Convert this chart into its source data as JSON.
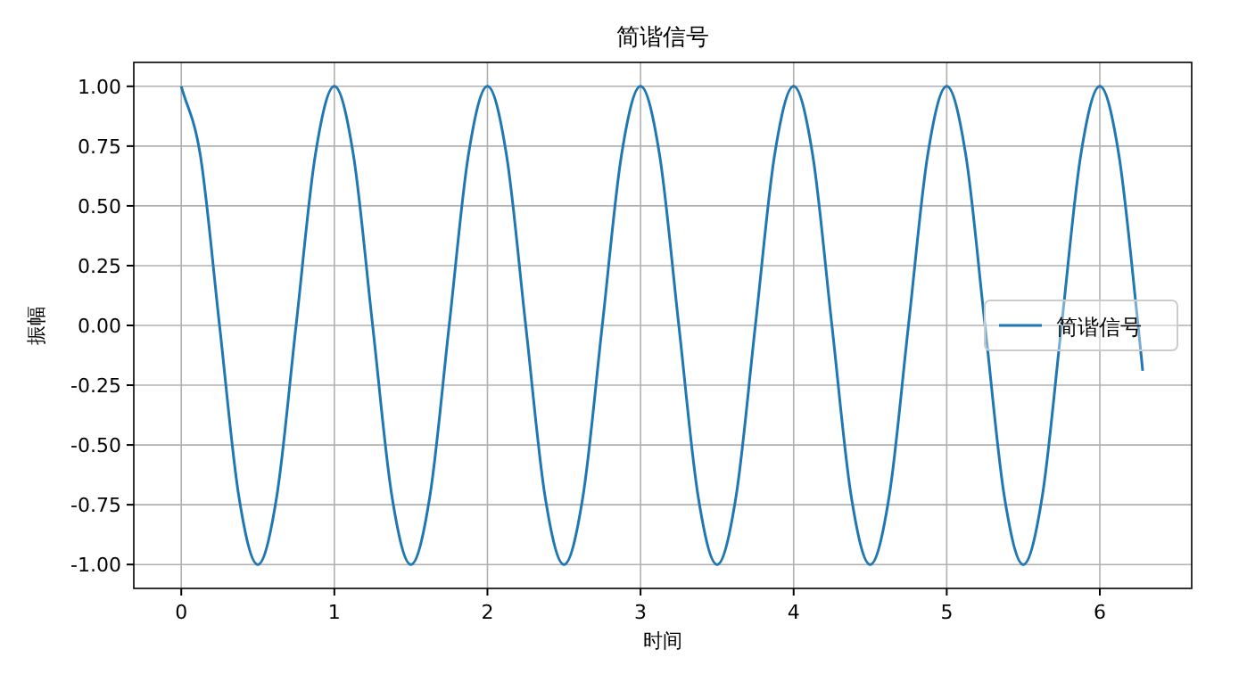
{
  "chart_data": {
    "type": "line",
    "title": "简谐信号",
    "xlabel": "时间",
    "ylabel": "振幅",
    "x": [
      0,
      0.125,
      0.25,
      0.375,
      0.5,
      0.625,
      0.75,
      0.875,
      1,
      1.125,
      1.25,
      1.375,
      1.5,
      1.625,
      1.75,
      1.875,
      2,
      2.125,
      2.25,
      2.375,
      2.5,
      2.625,
      2.75,
      2.875,
      3,
      3.125,
      3.25,
      3.375,
      3.5,
      3.625,
      3.75,
      3.875,
      4,
      4.125,
      4.25,
      4.375,
      4.5,
      4.625,
      4.75,
      4.875,
      5,
      5.125,
      5.25,
      5.375,
      5.5,
      5.625,
      5.75,
      5.875,
      6,
      6.125,
      6.25,
      6.28
    ],
    "series": [
      {
        "name": "简谐信号",
        "color": "#1f77b4",
        "values": [
          1,
          0.71,
          0,
          -0.71,
          -1,
          -0.71,
          0,
          0.71,
          1,
          0.71,
          0,
          -0.71,
          -1,
          -0.71,
          0,
          0.71,
          1,
          0.71,
          0,
          -0.71,
          -1,
          -0.71,
          0,
          0.71,
          1,
          0.71,
          0,
          -0.71,
          -1,
          -0.71,
          0,
          0.71,
          1,
          0.71,
          0,
          -0.71,
          -1,
          -0.71,
          0,
          0.71,
          1,
          0.71,
          0,
          -0.71,
          -1,
          -0.71,
          0,
          0.71,
          1,
          0.71,
          0,
          -0.19
        ]
      }
    ],
    "xlim": [
      -0.31,
      6.6
    ],
    "ylim": [
      -1.1,
      1.1
    ],
    "xticks": [
      0,
      1,
      2,
      3,
      4,
      5,
      6
    ],
    "yticks": [
      {
        "value": -1,
        "label": "-1.00"
      },
      {
        "value": -0.75,
        "label": "-0.75"
      },
      {
        "value": -0.5,
        "label": "-0.50"
      },
      {
        "value": -0.25,
        "label": "-0.25"
      },
      {
        "value": 0,
        "label": "0.00"
      },
      {
        "value": 0.25,
        "label": "0.25"
      },
      {
        "value": 0.5,
        "label": "0.50"
      },
      {
        "value": 0.75,
        "label": "0.75"
      },
      {
        "value": 1,
        "label": "1.00"
      }
    ],
    "grid": true,
    "legend": "right",
    "line_style": "solid",
    "marker": "none"
  }
}
